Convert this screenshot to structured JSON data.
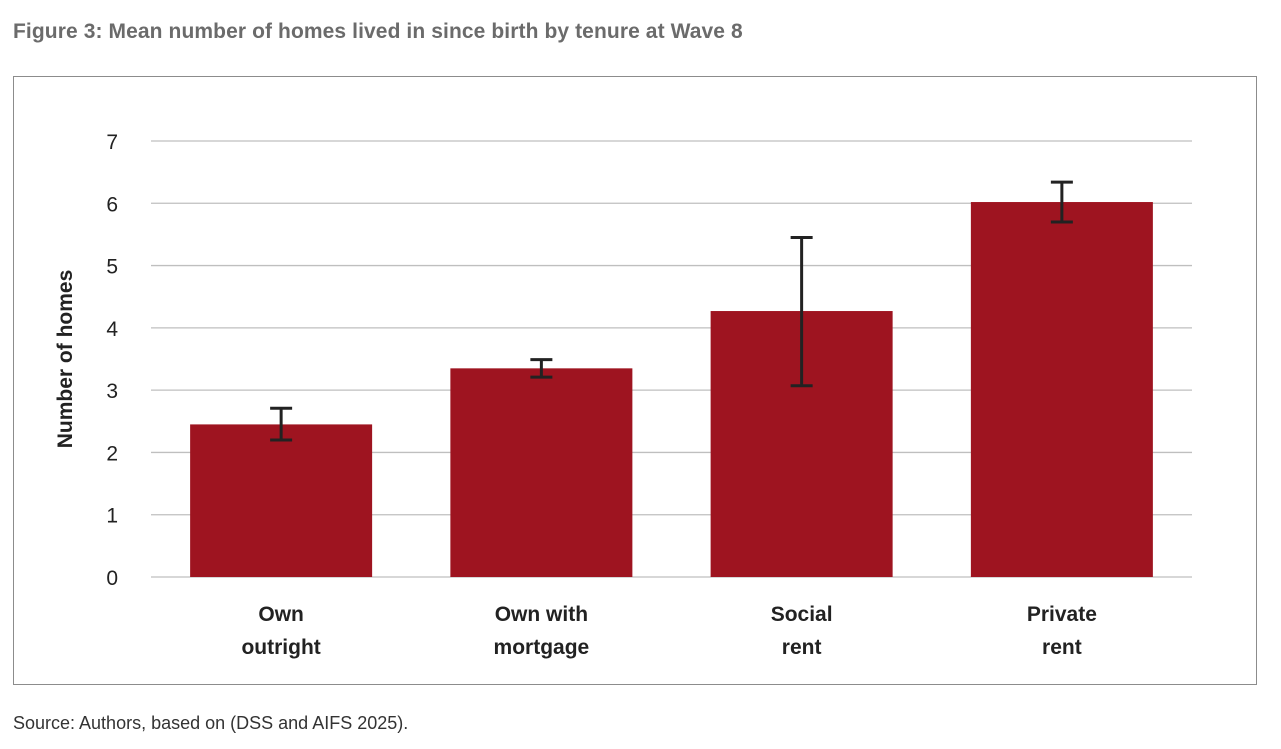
{
  "figure": {
    "title": "Figure 3: Mean number of homes lived in since birth by tenure at Wave 8",
    "source": "Source: Authors, based on (DSS and AIFS 2025)."
  },
  "colors": {
    "bar": "#9e1420",
    "grid": "#bfbfbf",
    "error_bar": "#222222",
    "text": "#222222",
    "title": "#6b6b6b"
  },
  "chart_data": {
    "type": "bar",
    "categories": [
      [
        "Own",
        "outright"
      ],
      [
        "Own with",
        "mortgage"
      ],
      [
        "Social",
        "rent"
      ],
      [
        "Private",
        "rent"
      ]
    ],
    "values": [
      2.45,
      3.35,
      4.27,
      6.02
    ],
    "error_bars": [
      {
        "low": 2.2,
        "high": 2.71
      },
      {
        "low": 3.21,
        "high": 3.49
      },
      {
        "low": 3.07,
        "high": 5.45
      },
      {
        "low": 5.7,
        "high": 6.34
      }
    ],
    "title": "",
    "xlabel": "",
    "ylabel": "Number of homes",
    "ylim": [
      0,
      7
    ],
    "yticks": [
      0,
      1,
      2,
      3,
      4,
      5,
      6,
      7
    ],
    "grid": true,
    "legend": "none"
  }
}
